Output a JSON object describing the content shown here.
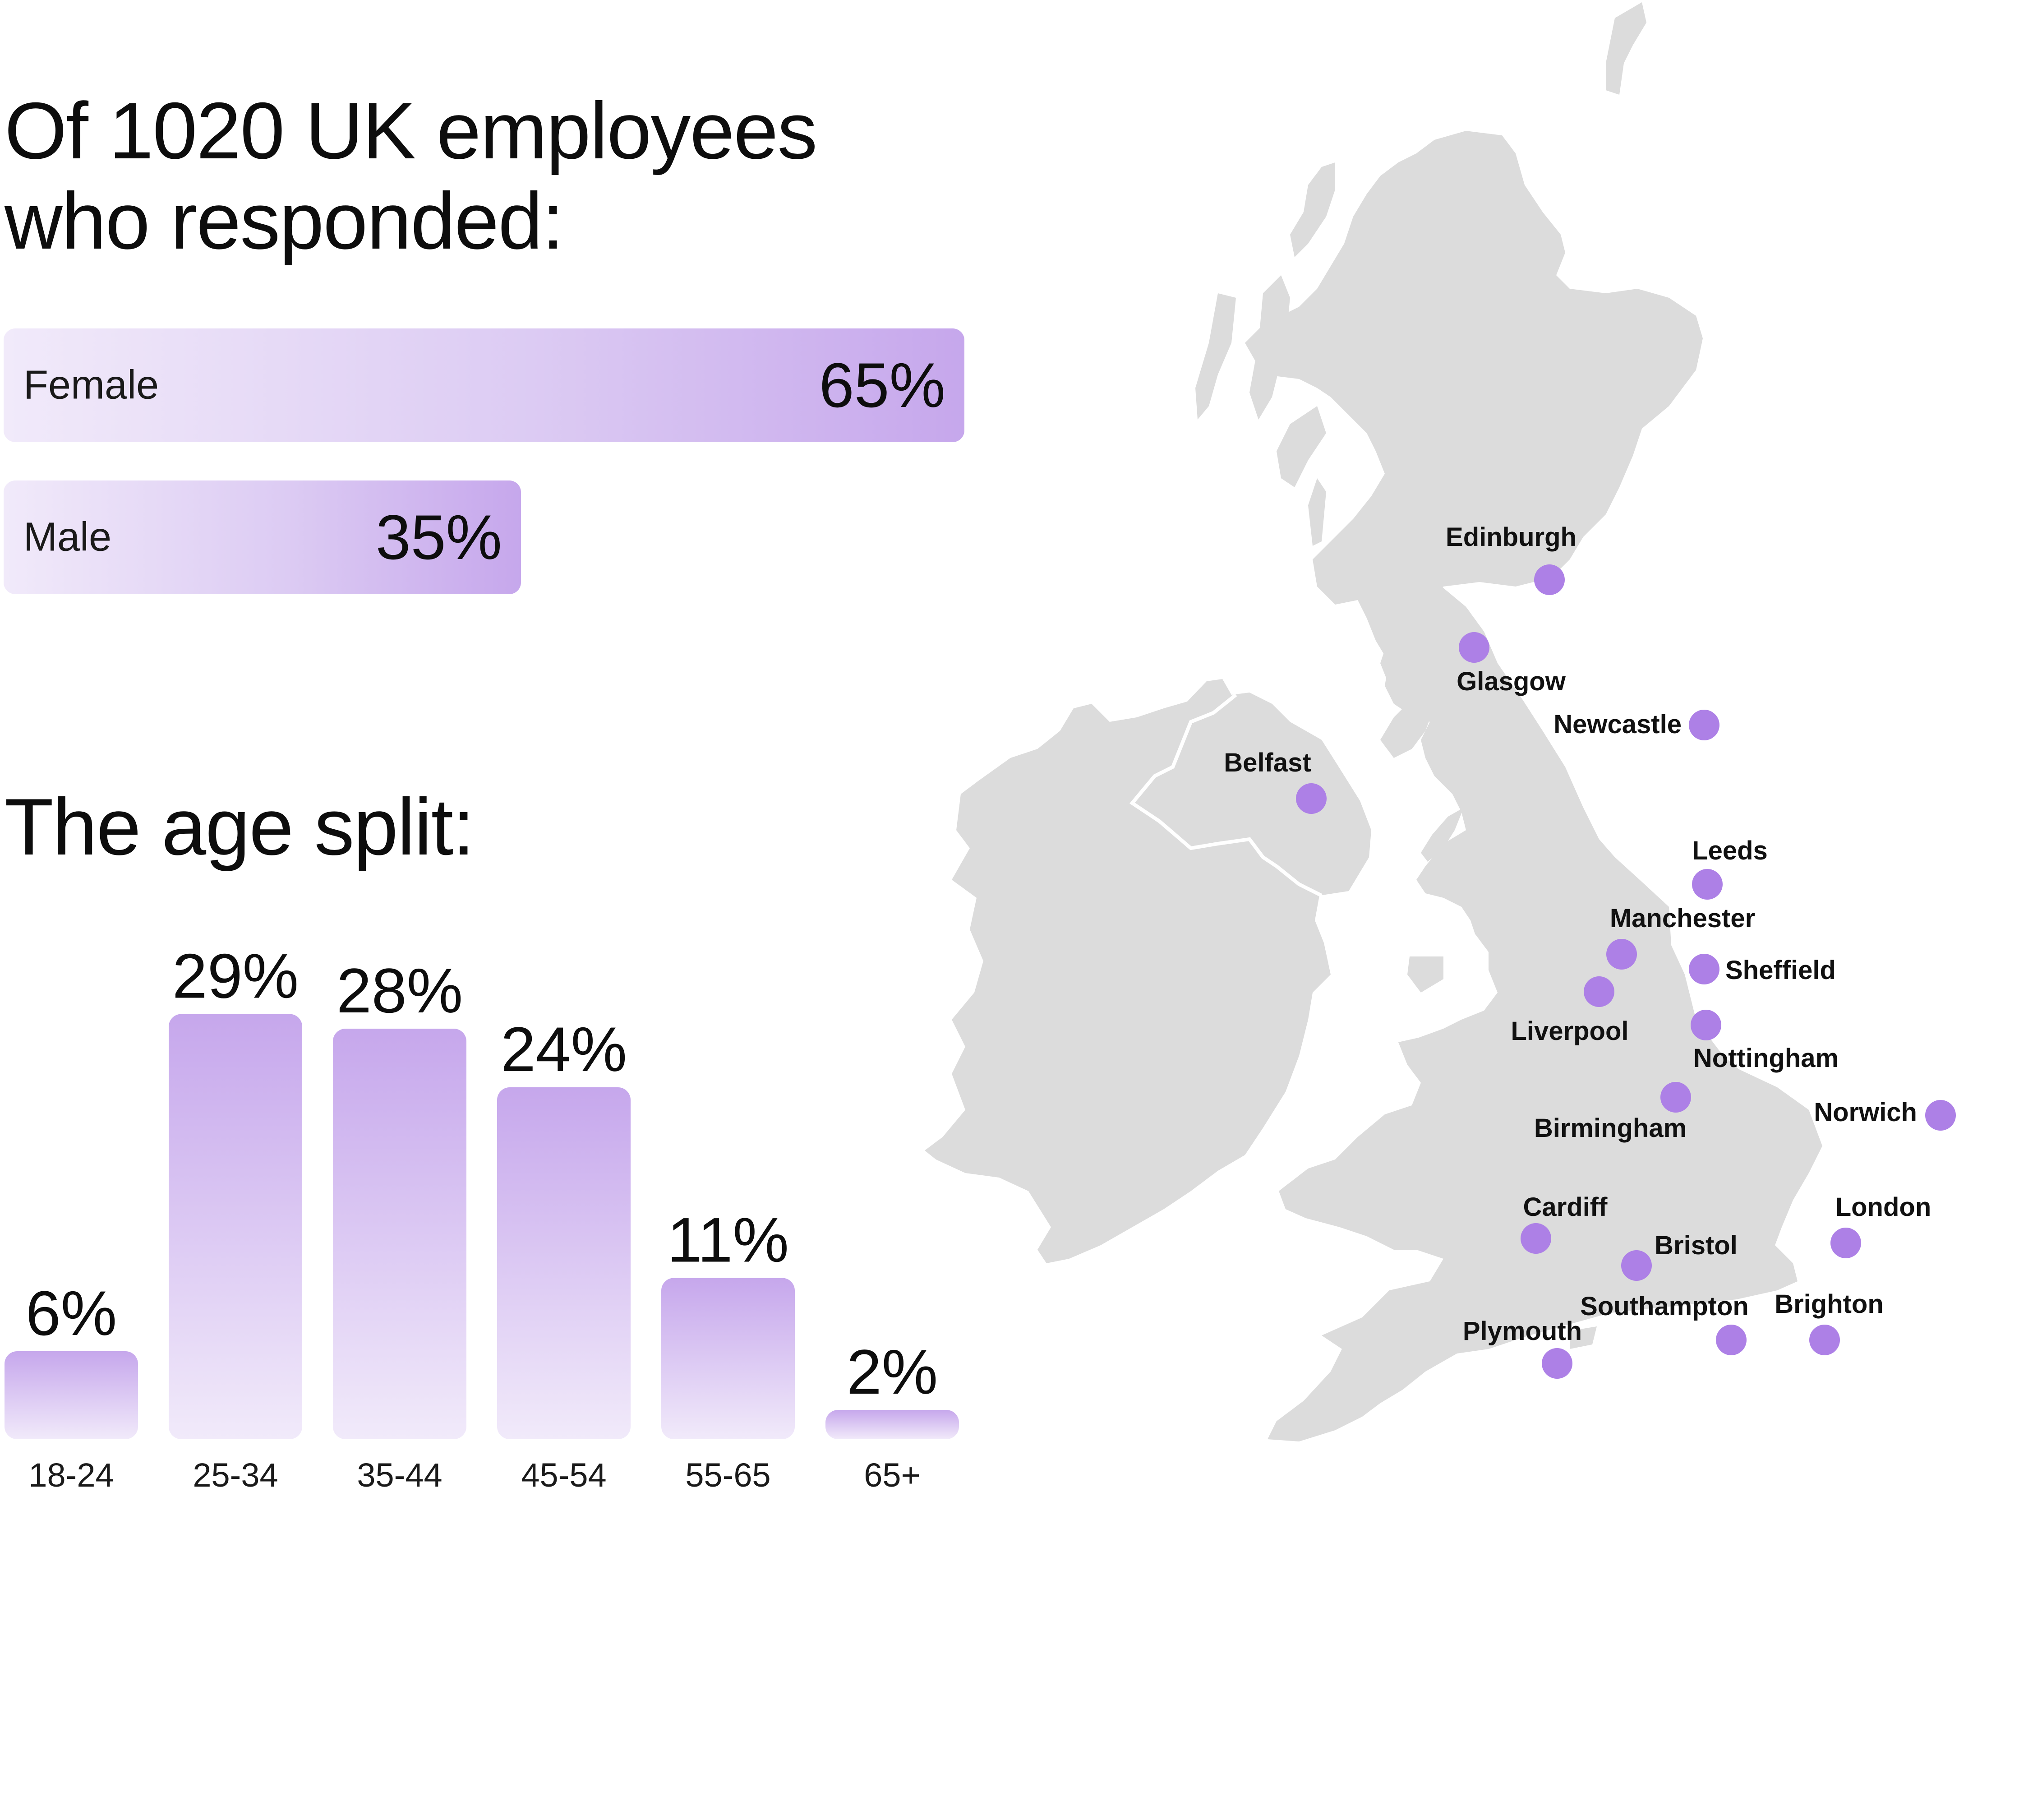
{
  "headline": {
    "line1": "Of 1020 UK employees",
    "line2": "who responded:"
  },
  "gender": [
    {
      "label": "Female",
      "value_text": "65%",
      "value": 65
    },
    {
      "label": "Male",
      "value_text": "35%",
      "value": 35
    }
  ],
  "age_title": "The age split:",
  "chart_data": {
    "type": "bar",
    "categories": [
      "18-24",
      "25-34",
      "35-44",
      "45-54",
      "55-65",
      "65+"
    ],
    "values": [
      6,
      29,
      28,
      24,
      11,
      2
    ],
    "data_labels": [
      "6%",
      "29%",
      "28%",
      "24%",
      "11%",
      "2%"
    ],
    "title": "The age split:",
    "xlabel": "",
    "ylabel": "",
    "ylim": [
      0,
      30
    ],
    "grid": false,
    "bar_gradient": [
      "#c6a7ec",
      "#f1eafa"
    ]
  },
  "map": {
    "land_color": "#dcdcdc",
    "marker_color": "#ad80e6",
    "cities": [
      {
        "name": "Edinburgh"
      },
      {
        "name": "Glasgow"
      },
      {
        "name": "Newcastle"
      },
      {
        "name": "Belfast"
      },
      {
        "name": "Leeds"
      },
      {
        "name": "Manchester"
      },
      {
        "name": "Sheffield"
      },
      {
        "name": "Liverpool"
      },
      {
        "name": "Nottingham"
      },
      {
        "name": "Birmingham"
      },
      {
        "name": "Norwich"
      },
      {
        "name": "Cardiff"
      },
      {
        "name": "London"
      },
      {
        "name": "Bristol"
      },
      {
        "name": "Southampton"
      },
      {
        "name": "Brighton"
      },
      {
        "name": "Plymouth"
      }
    ]
  }
}
